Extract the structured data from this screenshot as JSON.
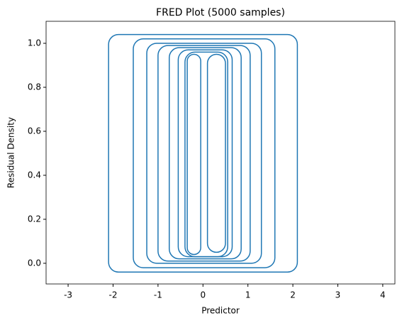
{
  "chart_data": {
    "type": "contour",
    "title": "FRED Plot (5000 samples)",
    "x_label": "Predictor",
    "y_label": "Residual Density",
    "color": "#1f77b4",
    "xlim": [
      -3.49,
      4.27
    ],
    "ylim": [
      -0.094,
      1.1
    ],
    "xticks": [
      -3,
      -2,
      -1,
      0,
      1,
      2,
      3,
      4
    ],
    "yticks": [
      {
        "value": 0,
        "label": "0.0"
      },
      {
        "value": 0.2,
        "label": "0.2"
      },
      {
        "value": 0.4,
        "label": "0.4"
      },
      {
        "value": 0.6,
        "label": "0.6"
      },
      {
        "value": 0.8,
        "label": "0.8"
      },
      {
        "value": 1,
        "label": "1.0"
      }
    ],
    "contours": [
      {
        "x": [
          -2.1,
          2.1
        ],
        "y": [
          -0.04,
          1.04
        ]
      },
      {
        "x": [
          -1.55,
          1.6
        ],
        "y": [
          -0.02,
          1.02
        ]
      },
      {
        "x": [
          -1.25,
          1.3
        ],
        "y": [
          0.0,
          1.0
        ]
      },
      {
        "x": [
          -1.0,
          1.05
        ],
        "y": [
          0.01,
          0.99
        ]
      },
      {
        "x": [
          -0.75,
          0.85
        ],
        "y": [
          0.02,
          0.98
        ]
      },
      {
        "x": [
          -0.55,
          0.65
        ],
        "y": [
          0.03,
          0.97
        ]
      },
      {
        "x": [
          -0.4,
          0.55
        ],
        "y": [
          0.03,
          0.96
        ]
      },
      {
        "x": [
          -0.35,
          -0.05
        ],
        "y": [
          0.04,
          0.95
        ]
      },
      {
        "x": [
          0.1,
          0.5
        ],
        "y": [
          0.05,
          0.95
        ]
      }
    ]
  }
}
